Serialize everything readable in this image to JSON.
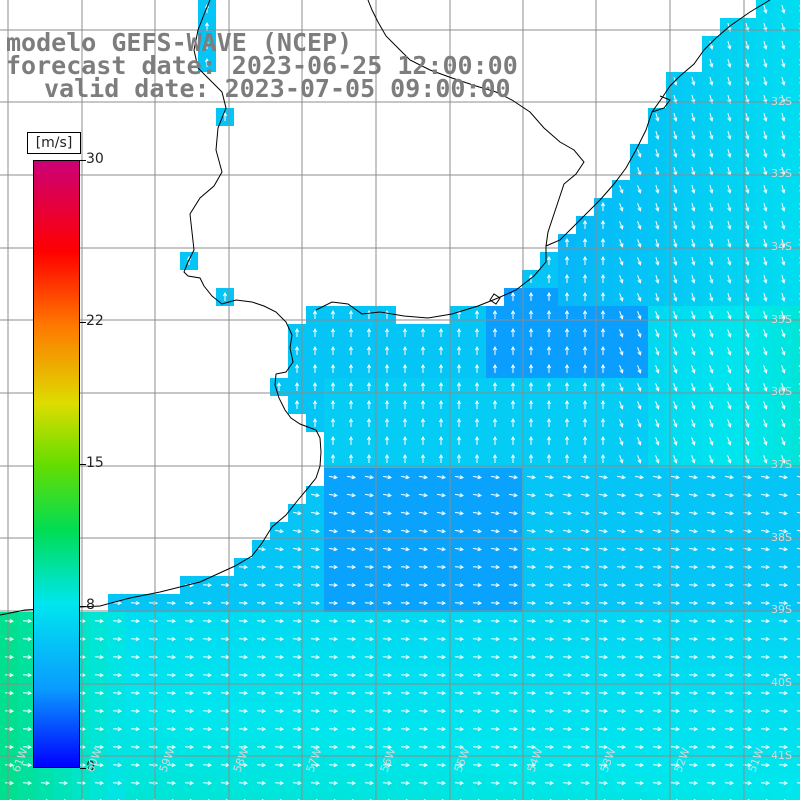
{
  "title": {
    "model": "modelo GEFS-WAVE (NCEP)",
    "forecast": "forecast date: 2023-06-25 12:00:00",
    "valid": "valid date: 2023-07-05 09:00:00"
  },
  "colorbar": {
    "unit": "[m/s]",
    "ticks": [
      {
        "value": 30,
        "label": "30"
      },
      {
        "value": 22,
        "label": "22"
      },
      {
        "value": 15,
        "label": "15"
      },
      {
        "value": 8,
        "label": "8"
      },
      {
        "value": 0,
        "label": "0"
      }
    ],
    "range": [
      0,
      30
    ],
    "colors": [
      "#0000ff",
      "#0a9cff",
      "#00e6ee",
      "#00dd55",
      "#66dd00",
      "#dddd00",
      "#ff7700",
      "#ff0000",
      "#cc0077"
    ]
  },
  "grid_labels": {
    "lat": [
      "32S",
      "33S",
      "34S",
      "35S",
      "36S",
      "37S",
      "38S",
      "39S",
      "40S",
      "41S"
    ],
    "lon": [
      "61W",
      "60W",
      "59W",
      "58W",
      "57W",
      "56W",
      "55W",
      "54W",
      "53W",
      "52W",
      "51W"
    ]
  },
  "colors": {
    "land": "#ffffff",
    "grid": "#8c8c8c",
    "coast": "#000000",
    "arrow": "#ffffff"
  }
}
